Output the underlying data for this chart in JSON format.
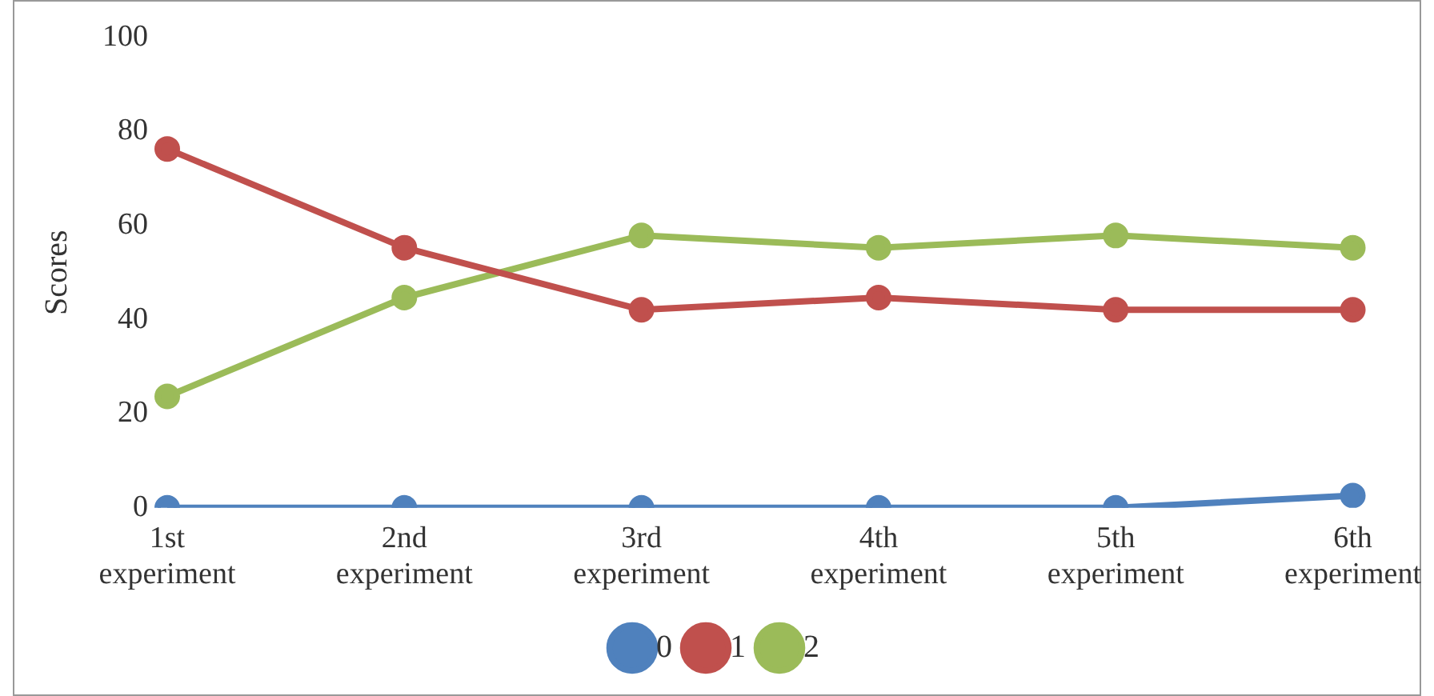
{
  "chart_data": {
    "type": "line",
    "ylabel": "Scores",
    "categories": [
      "1st experiment",
      "2nd experiment",
      "3rd experiment",
      "4th experiment",
      "5th experiment",
      "6th experiment"
    ],
    "series": [
      {
        "name": "0",
        "color": "#4f81bd",
        "values": [
          0,
          0,
          0,
          0,
          0,
          2.6
        ]
      },
      {
        "name": "1",
        "color": "#c0504d",
        "values": [
          76.3,
          55.3,
          42.1,
          44.7,
          42.1,
          42.1
        ]
      },
      {
        "name": "2",
        "color": "#9bbb59",
        "values": [
          23.7,
          44.7,
          57.9,
          55.3,
          57.9,
          55.3
        ]
      }
    ],
    "ylim": [
      0,
      100
    ],
    "yticks": [
      0,
      20,
      40,
      60,
      80,
      100
    ],
    "grid": false,
    "legend": "bottom",
    "marker": "circle",
    "line_style": "solid"
  }
}
